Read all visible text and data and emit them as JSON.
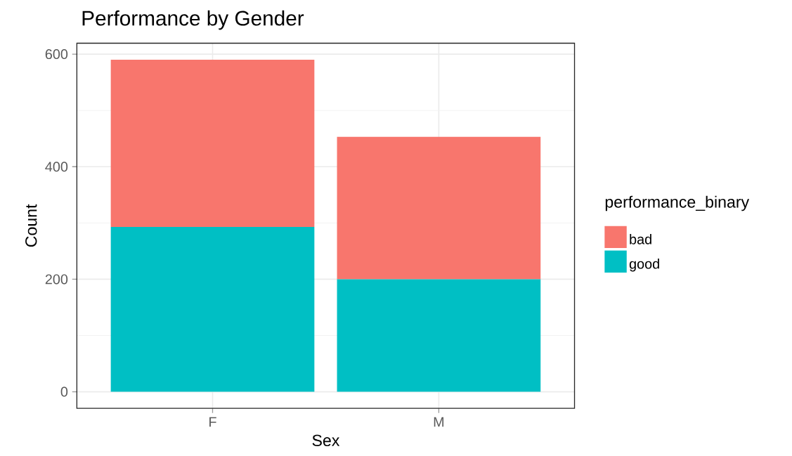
{
  "chart_data": {
    "type": "bar",
    "title": "Performance by Gender",
    "xlabel": "Sex",
    "ylabel": "Count",
    "legend_title": "performance_binary",
    "categories": [
      "F",
      "M"
    ],
    "stacked": true,
    "series": [
      {
        "name": "good",
        "color": "#00BFC4",
        "values": [
          293,
          200
        ]
      },
      {
        "name": "bad",
        "color": "#F8766D",
        "values": [
          297,
          253
        ]
      }
    ],
    "ylim": [
      -29.5,
      619.5
    ],
    "yticks": [
      0,
      200,
      400,
      600
    ],
    "grid": true,
    "legend": "right"
  }
}
